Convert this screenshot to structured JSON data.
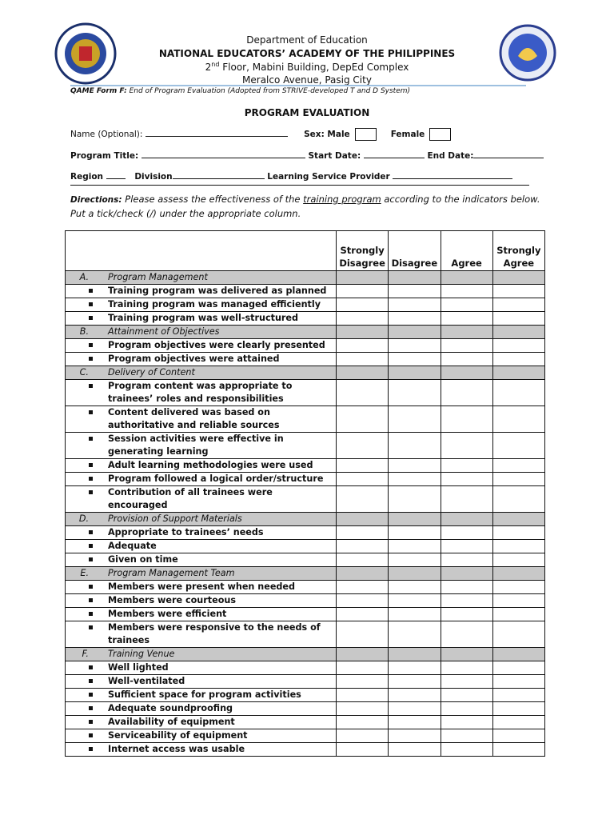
{
  "header": {
    "lines": [
      "Department of Education",
      "NATIONAL EDUCATORS’ ACADEMY OF THE PHILIPPINES"
    ],
    "address": [
      "2",
      "nd",
      " Floor, Mabini Building, DepEd Complex"
    ],
    "street": "Meralco Avenue, Pasig City"
  },
  "form_note": {
    "label": "QAME Form F:",
    "text": "End of Program Evaluation (Adopted from STRIVE-developed T and D System)"
  },
  "title": "PROGRAM EVALUATION",
  "fields": {
    "name": "Name (Optional):",
    "sex": "Sex:",
    "male": "Male",
    "female": "Female",
    "program_title": "Program Title:",
    "start_date": "Start Date:",
    "end_date": "End Date:",
    "region": "Region",
    "division": "Division",
    "provider": "Learning Service Provider"
  },
  "directions": {
    "label": "Directions:",
    "text": "Please assess the effectiveness of the",
    "underlined": "training program",
    "rest": "according to the indicators below.",
    "line2": "Put a tick/check (/) under the appropriate column."
  },
  "table": {
    "columns": [
      "Strongly Disagree",
      "Disagree",
      "Agree",
      "Strongly Agree"
    ],
    "sections": [
      {
        "letter": "A.",
        "title": "Program Management",
        "items": [
          "Training program was delivered as planned",
          "Training program was managed efficiently",
          "Training program was well-structured"
        ]
      },
      {
        "letter": "B.",
        "title": "Attainment of Objectives",
        "items": [
          "Program objectives were clearly presented",
          "Program objectives were attained"
        ]
      },
      {
        "letter": "C.",
        "title": "Delivery of Content",
        "items": [
          "Program content was appropriate to trainees’ roles and responsibilities",
          "Content delivered was based on authoritative and reliable sources",
          "Session activities were effective in generating learning",
          "Adult learning methodologies were used",
          "Program followed a logical order/structure",
          "Contribution of all trainees were encouraged"
        ]
      },
      {
        "letter": "D.",
        "title": "Provision of Support Materials",
        "items": [
          "Appropriate to trainees’ needs",
          "Adequate",
          "Given on time"
        ]
      },
      {
        "letter": "E.",
        "title": "Program Management Team",
        "items": [
          "Members were present when needed",
          "Members were courteous",
          "Members were efficient",
          "Members were responsive to the needs of trainees"
        ]
      },
      {
        "letter": "F.",
        "title": "Training Venue",
        "items": [
          "Well lighted",
          "Well-ventilated",
          "Sufficient space for program activities",
          "Adequate soundproofing",
          "Availability of equipment",
          "Serviceability of equipment",
          "Internet access was usable"
        ]
      }
    ]
  }
}
